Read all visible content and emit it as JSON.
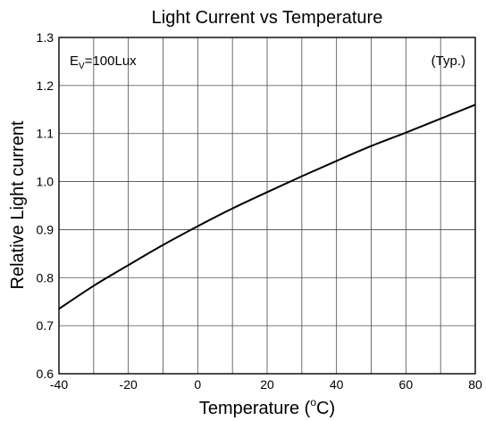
{
  "chart_data": {
    "type": "line",
    "title": "Light Current vs Temperature",
    "xlabel": "Temperature (°C)",
    "xlabel_parts": {
      "pre": "Temperature (",
      "sup": "o",
      "post": "C)"
    },
    "ylabel": "Relative Light current",
    "xlim": [
      -40,
      80
    ],
    "ylim": [
      0.6,
      1.3
    ],
    "x_ticks": [
      -40,
      -20,
      0,
      20,
      40,
      60,
      80
    ],
    "x_tick_labels": [
      "-40",
      "-20",
      "0",
      "20",
      "40",
      "60",
      "80"
    ],
    "y_ticks": [
      0.6,
      0.7,
      0.8,
      0.9,
      1.0,
      1.1,
      1.2,
      1.3
    ],
    "y_tick_labels": [
      "0.6",
      "0.7",
      "0.8",
      "0.9",
      "1.0",
      "1.1",
      "1.2",
      "1.3"
    ],
    "x_grid_step": 10,
    "y_grid_step": 0.1,
    "grid": true,
    "annotations": {
      "condition": {
        "main": "E",
        "sub": "V",
        "rest": "=100Lux",
        "position": "top-left"
      },
      "typ": {
        "text": "(Typ.)",
        "position": "top-right"
      }
    },
    "series": [
      {
        "x": [
          -40,
          -30,
          -20,
          -10,
          0,
          10,
          20,
          30,
          40,
          50,
          60,
          70,
          80
        ],
        "y": [
          0.735,
          0.783,
          0.826,
          0.868,
          0.907,
          0.944,
          0.978,
          1.011,
          1.043,
          1.074,
          1.102,
          1.131,
          1.16
        ]
      }
    ]
  }
}
